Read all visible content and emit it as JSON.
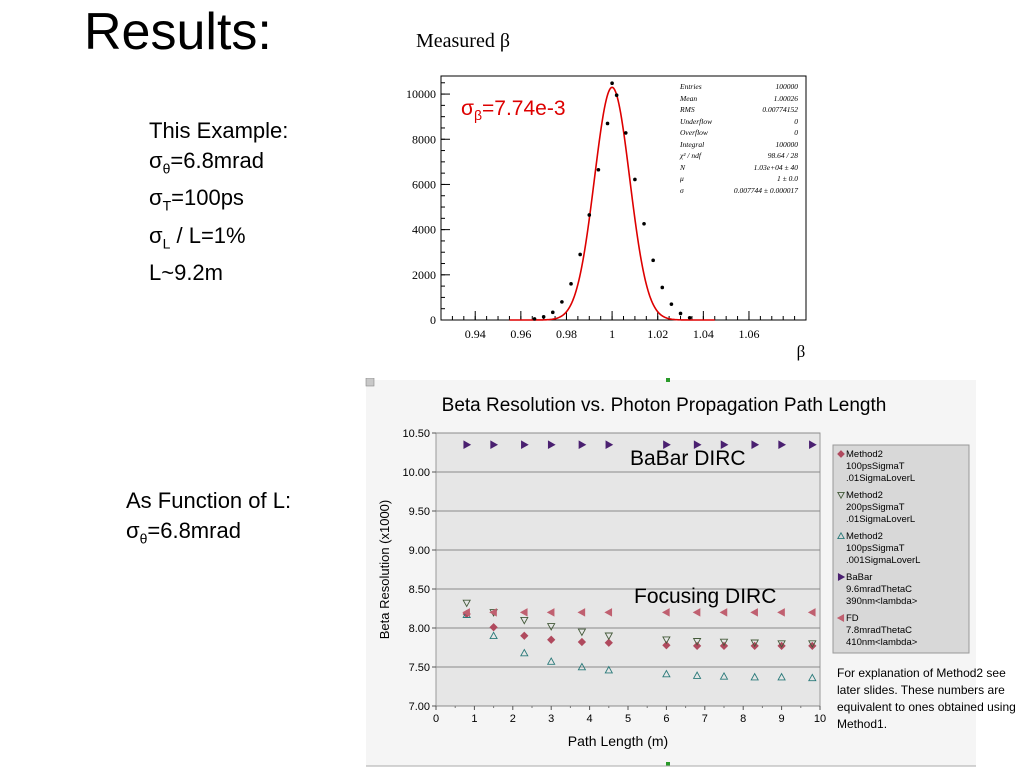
{
  "slide": {
    "title": "Results:",
    "example_block": {
      "heading": "This Example:",
      "lines": [
        {
          "sym": "σ",
          "sub": "θ",
          "rest": "=6.8mrad"
        },
        {
          "sym": "σ",
          "sub": "T",
          "rest": "=100ps"
        },
        {
          "sym": "σ",
          "sub": "L",
          "rest": " / L=1%"
        },
        {
          "sym": "",
          "sub": "",
          "rest": "L~9.2m"
        }
      ]
    },
    "function_block": {
      "heading": "As Function of L:",
      "line": {
        "sym": "σ",
        "sub": "θ",
        "rest": "=6.8mrad"
      }
    },
    "note": "For explanation of Method2 see later slides. These numbers are equivalent to ones obtained using Method1."
  },
  "chart_data": [
    {
      "type": "scatter",
      "title": "Measured β",
      "xlabel": "β",
      "ylabel": "",
      "xlim": [
        0.925,
        1.085
      ],
      "ylim": [
        0,
        10800
      ],
      "xticks": [
        "0.94",
        "0.96",
        "0.98",
        "1",
        "1.02",
        "1.04",
        "1.06"
      ],
      "yticks": [
        "0",
        "2000",
        "4000",
        "6000",
        "8000",
        "10000"
      ],
      "fit_label": {
        "sym": "σ",
        "sub": "β",
        "rest": "=7.74e-3"
      },
      "fit_color": "#dd0000",
      "fit": {
        "type": "gaussian",
        "N": 10300,
        "mu": 1.0,
        "sigma": 0.007744
      },
      "points": {
        "x": [
          0.966,
          0.97,
          0.974,
          0.978,
          0.982,
          0.986,
          0.99,
          0.994,
          0.998,
          1.0,
          1.002,
          1.006,
          1.01,
          1.014,
          1.018,
          1.022,
          1.026,
          1.03,
          1.034
        ],
        "y": [
          50,
          140,
          340,
          800,
          1600,
          2900,
          4650,
          6650,
          8700,
          10480,
          9950,
          8280,
          6220,
          4260,
          2640,
          1440,
          700,
          290,
          100
        ]
      },
      "stats": [
        {
          "label": "Entries",
          "value": "100000"
        },
        {
          "label": "Mean",
          "value": "1.00026"
        },
        {
          "label": "RMS",
          "value": "0.00774152"
        },
        {
          "label": "Underflow",
          "value": "0"
        },
        {
          "label": "Overflow",
          "value": "0"
        },
        {
          "label": "Integral",
          "value": "100000"
        },
        {
          "label": "χ² / ndf",
          "value": "98.64 / 28"
        },
        {
          "label": "N",
          "value": "1.03e+04  ± 40"
        },
        {
          "label": "μ",
          "value": "1 ± 0.0"
        },
        {
          "label": "σ",
          "value": "0.007744  ± 0.000017"
        }
      ]
    },
    {
      "type": "scatter",
      "title": "Beta Resolution vs. Photon Propagation Path Length",
      "xlabel": "Path Length (m)",
      "ylabel": "Beta Resolution  (x1000)",
      "xlim": [
        0,
        10
      ],
      "ylim": [
        7.0,
        10.5
      ],
      "xticks": [
        "0",
        "1",
        "2",
        "3",
        "4",
        "5",
        "6",
        "7",
        "8",
        "9",
        "10"
      ],
      "yticks": [
        "7.00",
        "7.50",
        "8.00",
        "8.50",
        "9.00",
        "9.50",
        "10.00",
        "10.50"
      ],
      "grid": true,
      "legend_position": "right",
      "annotations": [
        "BaBar DIRC",
        "Focusing DIRC"
      ],
      "series": [
        {
          "name": "Method2\n100psSigmaT\n.01SigmaLoverL",
          "marker": "diamond",
          "color": "#b04a5e",
          "x": [
            0.8,
            1.5,
            2.3,
            3.0,
            3.8,
            4.5,
            6.0,
            6.8,
            7.5,
            8.3,
            9.0,
            9.8
          ],
          "y": [
            8.18,
            8.01,
            7.9,
            7.85,
            7.82,
            7.81,
            7.78,
            7.77,
            7.77,
            7.77,
            7.77,
            7.77
          ]
        },
        {
          "name": "Method2\n200psSigmaT\n.01SigmaLoverL",
          "marker": "triangle-down",
          "color": "#445a3a",
          "x": [
            0.8,
            1.5,
            2.3,
            3.0,
            3.8,
            4.5,
            6.0,
            6.8,
            7.5,
            8.3,
            9.0,
            9.8
          ],
          "y": [
            8.32,
            8.2,
            8.1,
            8.02,
            7.95,
            7.9,
            7.85,
            7.83,
            7.82,
            7.81,
            7.8,
            7.8
          ]
        },
        {
          "name": "Method2\n100psSigmaT\n.001SigmaLoverL",
          "marker": "triangle-up",
          "color": "#2a7a7a",
          "x": [
            0.8,
            1.5,
            2.3,
            3.0,
            3.8,
            4.5,
            6.0,
            6.8,
            7.5,
            8.3,
            9.0,
            9.8
          ],
          "y": [
            8.17,
            7.9,
            7.68,
            7.57,
            7.5,
            7.46,
            7.41,
            7.39,
            7.38,
            7.37,
            7.37,
            7.36
          ]
        },
        {
          "name": "BaBar\n9.6mradThetaC\n390nm<lambda>",
          "marker": "triangle-right",
          "color": "#4a2070",
          "x": [
            0.8,
            1.5,
            2.3,
            3.0,
            3.8,
            4.5,
            6.0,
            6.8,
            7.5,
            8.3,
            9.0,
            9.8
          ],
          "y": [
            10.35,
            10.35,
            10.35,
            10.35,
            10.35,
            10.35,
            10.35,
            10.35,
            10.35,
            10.35,
            10.35,
            10.35
          ]
        },
        {
          "name": "FD\n7.8mradThetaC\n410nm<lambda>",
          "marker": "triangle-left",
          "color": "#c06070",
          "x": [
            0.8,
            1.5,
            2.3,
            3.0,
            3.8,
            4.5,
            6.0,
            6.8,
            7.5,
            8.3,
            9.0,
            9.8
          ],
          "y": [
            8.2,
            8.2,
            8.2,
            8.2,
            8.2,
            8.2,
            8.2,
            8.2,
            8.2,
            8.2,
            8.2,
            8.2
          ]
        }
      ]
    }
  ]
}
